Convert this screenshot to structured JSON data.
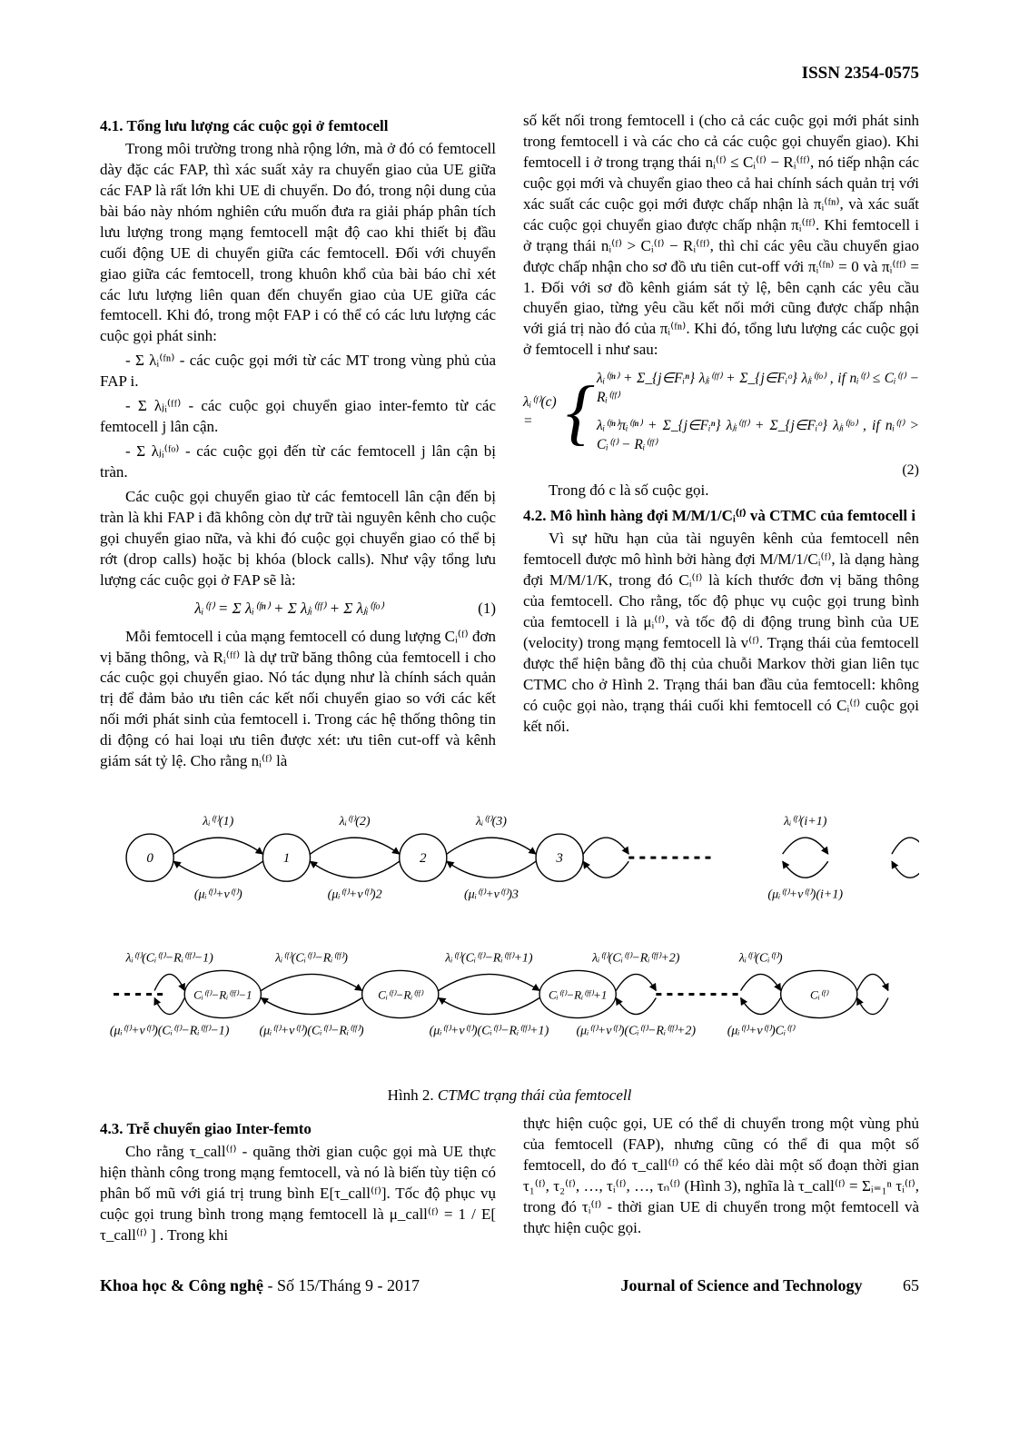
{
  "issn": "ISSN 2354-0575",
  "left": {
    "h41": "4.1. Tổng lưu lượng các cuộc gọi ở femtocell",
    "p1": "Trong môi trường trong nhà rộng lớn, mà ở đó có femtocell dày đặc các FAP, thì xác suất xảy ra chuyển giao của UE giữa các FAP là rất lớn khi UE di chuyển. Do đó, trong nội dung của bài báo này nhóm nghiên cứu muốn đưa ra giải pháp phân tích lưu lượng trong mạng femtocell mật độ cao khi thiết bị đầu cuối động UE di chuyển giữa các femtocell. Đối với chuyển giao giữa các femtocell, trong khuôn khổ của bài báo chỉ xét các lưu lượng liên quan đến chuyển giao của UE giữa các femtocell. Khi đó, trong một FAP i có thể có các lưu lượng các cuộc gọi phát sinh:",
    "b1": "- Σ λᵢ⁽ᶠⁿ⁾ - các cuộc gọi mới từ các MT trong vùng phủ của FAP i.",
    "b2": "- Σ λⱼᵢ⁽ᶠᶠ⁾ - các cuộc gọi chuyển giao inter-femto từ các femtocell j lân cận.",
    "b3": "- Σ λⱼᵢ⁽ᶠᵒ⁾ - các cuộc gọi đến từ các femtocell j lân cận bị tràn.",
    "p2": "Các cuộc gọi chuyển giao từ các femtocell lân cận đến bị tràn là khi FAP i đã không còn dự trữ tài nguyên kênh cho cuộc gọi chuyển giao nữa, và khi đó cuộc gọi chuyển giao có thể bị rớt (drop calls) hoặc bị khóa (block calls). Như vậy tổng lưu lượng các cuộc gọi ở FAP sẽ là:",
    "eq1": "λᵢ⁽ᶠ⁾ = Σ λᵢ⁽ᶠⁿ⁾ + Σ λⱼᵢ⁽ᶠᶠ⁾ + Σ λⱼᵢ⁽ᶠᵒ⁾",
    "eq1n": "(1)",
    "p3": "Mỗi femtocell i của mạng femtocell có dung lượng Cᵢ⁽ᶠ⁾ đơn vị băng thông, và Rᵢ⁽ᶠᶠ⁾ là dự trữ băng thông của femtocell i cho các cuộc gọi chuyển giao. Nó tác dụng như là chính sách quản trị để đảm bảo ưu tiên các kết nối chuyển giao so với các kết nối mới phát sinh của femtocell i. Trong các hệ thống thông tin di động có hai loại ưu tiên được xét: ưu tiên cut-off và kênh giám sát tỷ lệ. Cho rằng nᵢ⁽ᶠ⁾ là"
  },
  "right": {
    "p1": "số kết nối trong femtocell i (cho cả các cuộc gọi mới phát sinh trong femtocell i và các cho cả các cuộc gọi chuyển giao). Khi femtocell i ở trong trạng thái nᵢ⁽ᶠ⁾ ≤ Cᵢ⁽ᶠ⁾ − Rᵢ⁽ᶠᶠ⁾, nó tiếp nhận các cuộc gọi mới và chuyển giao theo cả hai chính sách quản trị với xác suất các cuộc gọi mới được chấp nhận là πᵢ⁽ᶠⁿ⁾, và xác suất các cuộc gọi chuyển giao được chấp nhận πᵢ⁽ᶠᶠ⁾. Khi femtocell i ở trạng thái nᵢ⁽ᶠ⁾ > Cᵢ⁽ᶠ⁾ − Rᵢ⁽ᶠᶠ⁾, thì chỉ các yêu cầu chuyển giao được chấp nhận cho sơ đồ ưu tiên cut-off với πᵢ⁽ᶠⁿ⁾ = 0 và πᵢ⁽ᶠᶠ⁾ = 1. Đối với sơ đồ kênh giám sát tỷ lệ, bên cạnh các yêu cầu chuyển giao, từng yêu cầu kết nối mới cũng được chấp nhận với giá trị nào đó của πᵢ⁽ᶠⁿ⁾. Khi đó, tổng lưu lượng các cuộc gọi ở femtocell i như sau:",
    "eq2_lhs": "λᵢ⁽ᶠ⁾(c) =",
    "eq2_row1": "λᵢ⁽ᶠⁿ⁾ + Σ_{j∈Fᵢⁿ} λⱼᵢ⁽ᶠᶠ⁾ + Σ_{j∈Fᵢᵒ} λⱼᵢ⁽ᶠᵒ⁾ , if  nᵢ⁽ᶠ⁾ ≤ Cᵢ⁽ᶠ⁾ − Rᵢ⁽ᶠᶠ⁾",
    "eq2_row2": "λᵢ⁽ᶠⁿ⁾πᵢ⁽ᶠⁿ⁾ + Σ_{j∈Fᵢⁿ} λⱼᵢ⁽ᶠᶠ⁾ + Σ_{j∈Fᵢᵒ} λⱼᵢ⁽ᶠᵒ⁾ , if  nᵢ⁽ᶠ⁾ > Cᵢ⁽ᶠ⁾ − Rᵢ⁽ᶠᶠ⁾",
    "eq2n": "(2)",
    "p2": "Trong đó c là số cuộc gọi.",
    "h42": "4.2. Mô hình hàng đợi M/M/1/Cᵢ⁽ᶠ⁾ và CTMC của femtocell i",
    "p3": "Vì sự hữu hạn của tài nguyên kênh của femtocell nên femtocell được mô hình bởi hàng đợi M/M/1/Cᵢ⁽ᶠ⁾, là dạng hàng đợi M/M/1/K, trong đó Cᵢ⁽ᶠ⁾ là kích thước đơn vị băng thông của femtocell. Cho rằng, tốc độ phục vụ cuộc gọi trung bình của femtocell i là μᵢ⁽ᶠ⁾, và tốc độ di động trung bình của UE (velocity) trong mạng femtocell là v⁽ᶠ⁾. Trạng thái của femtocell được thể hiện bằng đồ thị của chuỗi Markov thời gian liên tục CTMC cho ở Hình 2. Trạng thái ban đầu của femtocell: không có cuộc gọi nào, trạng thái cuối khi femtocell có Cᵢ⁽ᶠ⁾ cuộc gọi kết nối."
  },
  "figure2": {
    "caption_lead": "Hình 2. ",
    "caption_body": "CTMC trạng thái của femtocell",
    "states_top": [
      "0",
      "1",
      "2",
      "3"
    ],
    "states_bottom_left": "Cᵢ⁽ᶠ⁾−Rᵢ⁽ᶠᶠ⁾−1",
    "states_bottom_mid1": "Cᵢ⁽ᶠ⁾−Rᵢ⁽ᶠᶠ⁾",
    "states_bottom_mid2": "Cᵢ⁽ᶠ⁾−Rᵢ⁽ᶠᶠ⁾+1",
    "states_bottom_right": "Cᵢ⁽ᶠ⁾",
    "top_arrows": [
      "λᵢ⁽ᶠ⁾(1)",
      "λᵢ⁽ᶠ⁾(2)",
      "λᵢ⁽ᶠ⁾(3)",
      "λᵢ⁽ᶠ⁾(i+1)"
    ],
    "bot_arrows": [
      "(μᵢ⁽ᶠ⁾+v⁽ᶠ⁾)",
      "(μᵢ⁽ᶠ⁾+v⁽ᶠ⁾)2",
      "(μᵢ⁽ᶠ⁾+v⁽ᶠ⁾)3",
      "(μᵢ⁽ᶠ⁾+v⁽ᶠ⁾)(i+1)"
    ],
    "row2_top": [
      "λᵢ⁽ᶠ⁾(Cᵢ⁽ᶠ⁾−Rᵢ⁽ᶠᶠ⁾−1)",
      "λᵢ⁽ᶠ⁾(Cᵢ⁽ᶠ⁾−Rᵢ⁽ᶠᶠ⁾)",
      "λᵢ⁽ᶠ⁾(Cᵢ⁽ᶠ⁾−Rᵢ⁽ᶠᶠ⁾+1)",
      "λᵢ⁽ᶠ⁾(Cᵢ⁽ᶠ⁾−Rᵢ⁽ᶠᶠ⁾+2)",
      "λᵢ⁽ᶠ⁾(Cᵢ⁽ᶠ⁾)"
    ],
    "row2_bot": [
      "(μᵢ⁽ᶠ⁾+v⁽ᶠ⁾)(Cᵢ⁽ᶠ⁾−Rᵢ⁽ᶠᶠ⁾−1)",
      "(μᵢ⁽ᶠ⁾+v⁽ᶠ⁾)(Cᵢ⁽ᶠ⁾−Rᵢ⁽ᶠᶠ⁾)",
      "(μᵢ⁽ᶠ⁾+v⁽ᶠ⁾)(Cᵢ⁽ᶠ⁾−Rᵢ⁽ᶠᶠ⁾+1)",
      "(μᵢ⁽ᶠ⁾+v⁽ᶠ⁾)(Cᵢ⁽ᶠ⁾−Rᵢ⁽ᶠᶠ⁾+2)",
      "(μᵢ⁽ᶠ⁾+v⁽ᶠ⁾)Cᵢ⁽ᶠ⁾"
    ],
    "style": {
      "node_stroke": "#000000",
      "node_fill": "#ffffff",
      "node_r": 26,
      "arrow_stroke": "#000000",
      "arrow_width": 1.4,
      "font_family": "Times New Roman",
      "label_font_size": 14,
      "node_font_size": 15
    }
  },
  "left43": {
    "h43": "4.3. Trễ chuyển giao Inter-femto",
    "p1": "Cho rằng τ_call⁽ᶠ⁾ - quãng thời gian cuộc gọi mà UE thực hiện thành công trong mạng femtocell, và nó là biến tùy tiện có phân bố mũ với giá trị trung bình E[τ_call⁽ᶠ⁾]. Tốc độ phục vụ cuộc gọi trung bình trong mạng femtocell là μ_call⁽ᶠ⁾ = 1 / E[ τ_call⁽ᶠ⁾ ] . Trong khi"
  },
  "right43": {
    "p1": "thực hiện cuộc gọi, UE có thể di chuyển trong một vùng phủ của femtocell (FAP), nhưng cũng có thể đi qua một số femtocell, do đó τ_call⁽ᶠ⁾ có thể kéo dài một số đoạn thời gian τ₁⁽ᶠ⁾, τ₂⁽ᶠ⁾, …, τᵢ⁽ᶠ⁾, …, τₙ⁽ᶠ⁾ (Hình 3), nghĩa là τ_call⁽ᶠ⁾ = Σᵢ₌₁ⁿ τᵢ⁽ᶠ⁾, trong đó τᵢ⁽ᶠ⁾ - thời gian UE di chuyển trong một femtocell và thực hiện cuộc gọi."
  },
  "footer": {
    "left_bold": "Khoa học & Công nghệ",
    "left_rest": " - Số 15/Tháng 9 - 2017",
    "right": "Journal of Science and Technology",
    "page": "65"
  }
}
